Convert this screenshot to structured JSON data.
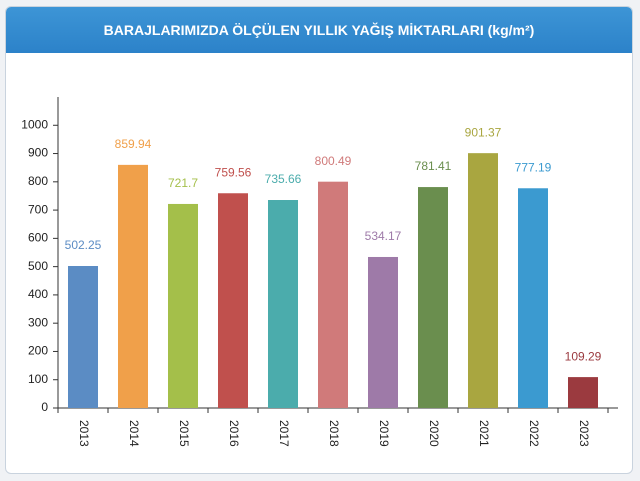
{
  "chart_data": {
    "type": "bar",
    "title": "BARAJLARIMIZDA ÖLÇÜLEN YILLIK YAĞIŞ MİKTARLARI (kg/m²)",
    "categories": [
      "2013",
      "2014",
      "2015",
      "2016",
      "2017",
      "2018",
      "2019",
      "2020",
      "2021",
      "2022",
      "2023"
    ],
    "values": [
      502.25,
      859.94,
      721.7,
      759.56,
      735.66,
      800.49,
      534.17,
      781.41,
      901.37,
      777.19,
      109.29
    ],
    "colors": [
      "#5b8cc4",
      "#f0a04a",
      "#a4bf4a",
      "#c0504d",
      "#4bacac",
      "#d07a7a",
      "#9e7aa8",
      "#6a8e4e",
      "#a9a640",
      "#3b9ad0",
      "#9b3a3f"
    ],
    "ylim": [
      0,
      1100
    ],
    "yticks": [
      0,
      100,
      200,
      300,
      400,
      500,
      600,
      700,
      800,
      900,
      1000
    ],
    "grid": false
  }
}
